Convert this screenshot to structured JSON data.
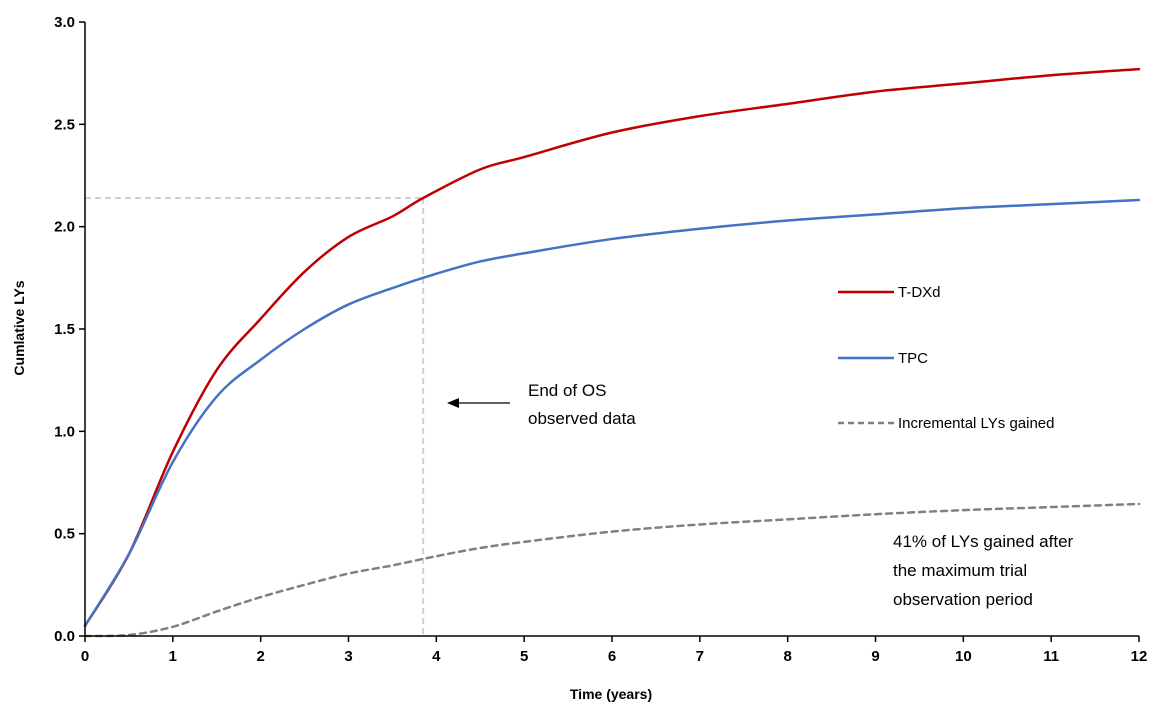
{
  "chart_data": {
    "type": "line",
    "title": "",
    "xlabel": "Time (years)",
    "ylabel": "Cumlative LYs",
    "xlim": [
      0,
      12
    ],
    "ylim": [
      0,
      3.0
    ],
    "x_ticks": [
      "0",
      "1",
      "2",
      "3",
      "4",
      "5",
      "6",
      "7",
      "8",
      "9",
      "10",
      "11",
      "12"
    ],
    "y_ticks": [
      "0.0",
      "0.5",
      "1.0",
      "1.5",
      "2.0",
      "2.5",
      "3.0"
    ],
    "grid": false,
    "legend_position": "right",
    "series": [
      {
        "name": "T-DXd",
        "color": "#c00000",
        "style": "solid",
        "x": [
          0,
          0.5,
          1,
          1.5,
          2,
          2.5,
          3,
          3.5,
          3.85,
          4.5,
          5,
          6,
          7,
          8,
          9,
          10,
          11,
          12
        ],
        "y": [
          0.05,
          0.4,
          0.9,
          1.3,
          1.55,
          1.78,
          1.95,
          2.05,
          2.14,
          2.28,
          2.34,
          2.46,
          2.54,
          2.6,
          2.66,
          2.7,
          2.74,
          2.77
        ]
      },
      {
        "name": "TPC",
        "color": "#4472c4",
        "style": "solid",
        "x": [
          0,
          0.5,
          1,
          1.5,
          2,
          2.5,
          3,
          3.5,
          4,
          4.5,
          5,
          6,
          7,
          8,
          9,
          10,
          11,
          12
        ],
        "y": [
          0.05,
          0.4,
          0.85,
          1.17,
          1.35,
          1.5,
          1.62,
          1.7,
          1.77,
          1.83,
          1.87,
          1.94,
          1.99,
          2.03,
          2.06,
          2.09,
          2.11,
          2.13
        ]
      },
      {
        "name": "Incremental LYs gained",
        "color": "#808080",
        "style": "dashed",
        "x": [
          0,
          0.5,
          1,
          1.5,
          2,
          2.5,
          3,
          3.5,
          4,
          4.5,
          5,
          6,
          7,
          8,
          9,
          10,
          11,
          12
        ],
        "y": [
          0,
          0.005,
          0.045,
          0.12,
          0.19,
          0.25,
          0.305,
          0.345,
          0.39,
          0.43,
          0.46,
          0.51,
          0.545,
          0.57,
          0.595,
          0.615,
          0.63,
          0.645
        ]
      }
    ],
    "reference_lines": {
      "vertical_x": 3.85,
      "horizontal_y": 2.14,
      "color": "#d0d0d0"
    },
    "annotations": {
      "end_of_os_line1": "End of OS",
      "end_of_os_line2": "observed data",
      "lys_note_line1": "41% of LYs gained after",
      "lys_note_line2": "the maximum trial",
      "lys_note_line3": "observation period"
    }
  }
}
